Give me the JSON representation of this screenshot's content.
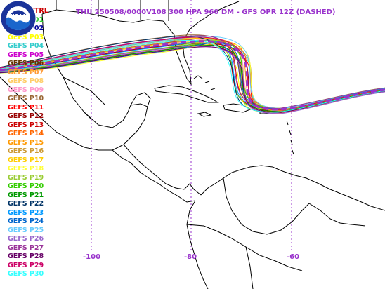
{
  "map": {
    "title": "THU 250508/0000V108  300 HPA 960 DM - GFS OPR 12Z (DASHED)",
    "title_color": "#9933cc",
    "longitude_labels": [
      "-100",
      "-80",
      "-60"
    ],
    "legend": [
      {
        "label": "GEFS CTRL",
        "color": "#cc0000"
      },
      {
        "label": "GEFS P01",
        "color": "#33cc33"
      },
      {
        "label": "GEFS P02",
        "color": "#000099"
      },
      {
        "label": "GEFS P03",
        "color": "#ffff00"
      },
      {
        "label": "GEFS P04",
        "color": "#33cccc"
      },
      {
        "label": "GEFS P05",
        "color": "#cc00cc"
      },
      {
        "label": "GEFS P06",
        "color": "#663300"
      },
      {
        "label": "GEFS P07",
        "color": "#ff9933"
      },
      {
        "label": "GEFS P08",
        "color": "#ffcc66"
      },
      {
        "label": "GEFS P09",
        "color": "#ff99cc"
      },
      {
        "label": "GEFS P10",
        "color": "#996633"
      },
      {
        "label": "GEFS P11",
        "color": "#ff0000"
      },
      {
        "label": "GEFS P12",
        "color": "#990000"
      },
      {
        "label": "GEFS P13",
        "color": "#cc0000"
      },
      {
        "label": "GEFS P14",
        "color": "#ff6600"
      },
      {
        "label": "GEFS P15",
        "color": "#ff9900"
      },
      {
        "label": "GEFS P16",
        "color": "#cc9933"
      },
      {
        "label": "GEFS P17",
        "color": "#ffcc00"
      },
      {
        "label": "GEFS P18",
        "color": "#ffff33"
      },
      {
        "label": "GEFS P19",
        "color": "#99cc33"
      },
      {
        "label": "GEFS P20",
        "color": "#33cc00"
      },
      {
        "label": "GEFS P21",
        "color": "#009900"
      },
      {
        "label": "GEFS P22",
        "color": "#003366"
      },
      {
        "label": "GEFS P23",
        "color": "#0099ff"
      },
      {
        "label": "GEFS P24",
        "color": "#0066cc"
      },
      {
        "label": "GEFS P25",
        "color": "#66ccff"
      },
      {
        "label": "GEFS P26",
        "color": "#9966cc"
      },
      {
        "label": "GEFS P27",
        "color": "#993399"
      },
      {
        "label": "GEFS P28",
        "color": "#660066"
      },
      {
        "label": "GEFS P29",
        "color": "#cc0066"
      },
      {
        "label": "GEFS P30",
        "color": "#33ffff"
      }
    ],
    "opr_color": "#9933cc",
    "logo_text": "NOAA"
  }
}
